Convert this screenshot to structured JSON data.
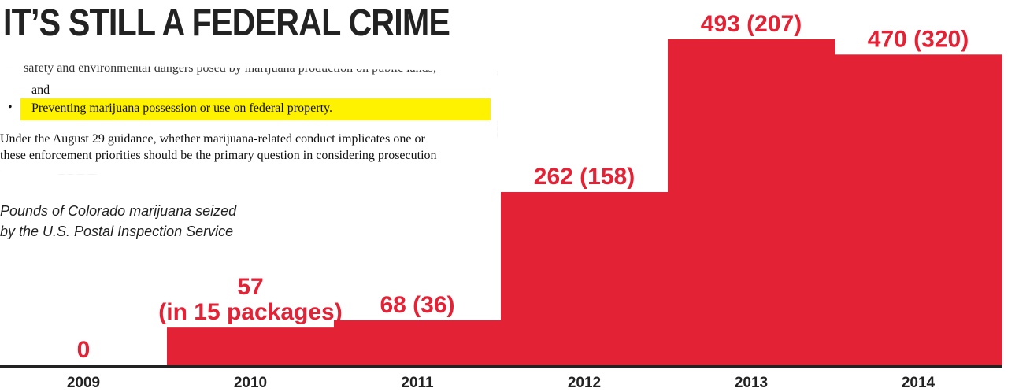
{
  "title": "IT’S STILL A FEDERAL CRIME",
  "subtitle_lines": [
    "Pounds of Colorado marijuana seized",
    "by the U.S. Postal Inspection Service"
  ],
  "clipping": {
    "cut_line": "safety and environmental dangers posed by marijuana production on public lands;",
    "and": "and",
    "bullet": "•",
    "highlight": "Preventing marijuana possession or use on federal property.",
    "line1": "Under the August 29 guidance, whether marijuana-related conduct implicates one or",
    "line2": "these enforcement priorities should be the primary question in considering prosecution"
  },
  "colors": {
    "bar": "#e32235",
    "label": "#e32235",
    "axis": "#222222",
    "highlight": "#fff200"
  },
  "chart_data": {
    "type": "bar",
    "categories": [
      "2009",
      "2010",
      "2011",
      "2012",
      "2013",
      "2014"
    ],
    "values": [
      0,
      57,
      68,
      262,
      493,
      470
    ],
    "data_labels": [
      [
        "0"
      ],
      [
        "57",
        "(in 15 packages)"
      ],
      [
        "68 (36)"
      ],
      [
        "262 (158)"
      ],
      [
        "493 (207)"
      ],
      [
        "470 (320)"
      ]
    ],
    "title": "IT’S STILL A FEDERAL CRIME",
    "xlabel": "",
    "ylabel": "",
    "ylim": [
      0,
      493
    ]
  }
}
